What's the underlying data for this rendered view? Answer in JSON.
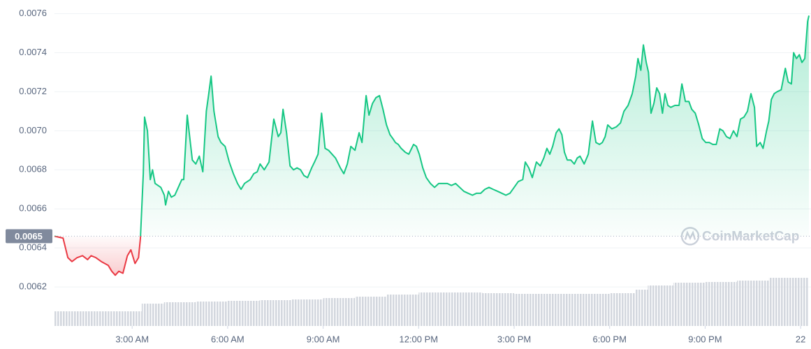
{
  "chart_data": {
    "type": "line",
    "x": [
      0.56,
      0.83,
      0.98,
      1.11,
      1.27,
      1.44,
      1.6,
      1.71,
      1.86,
      2.03,
      2.14,
      2.25,
      2.36,
      2.47,
      2.58,
      2.71,
      2.85,
      2.96,
      3.09,
      3.2,
      3.26,
      3.35,
      3.39,
      3.48,
      3.57,
      3.64,
      3.72,
      3.9,
      4.01,
      4.05,
      4.14,
      4.23,
      4.34,
      4.45,
      4.56,
      4.62,
      4.73,
      4.89,
      5.0,
      5.11,
      5.22,
      5.33,
      5.39,
      5.48,
      5.57,
      5.7,
      5.79,
      5.92,
      6.05,
      6.18,
      6.31,
      6.42,
      6.53,
      6.71,
      6.82,
      6.93,
      7.02,
      7.15,
      7.3,
      7.45,
      7.59,
      7.67,
      7.74,
      7.85,
      7.96,
      8.07,
      8.18,
      8.29,
      8.4,
      8.51,
      8.64,
      8.73,
      8.84,
      8.95,
      9.06,
      9.17,
      9.28,
      9.39,
      9.54,
      9.65,
      9.76,
      9.87,
      10.0,
      10.13,
      10.22,
      10.35,
      10.44,
      10.55,
      10.66,
      10.77,
      10.88,
      10.99,
      11.1,
      11.19,
      11.27,
      11.36,
      11.45,
      11.58,
      11.69,
      11.84,
      11.93,
      12.02,
      12.13,
      12.24,
      12.37,
      12.5,
      12.63,
      12.76,
      12.9,
      13.03,
      13.16,
      13.29,
      13.42,
      13.55,
      13.69,
      13.82,
      13.95,
      14.08,
      14.21,
      14.34,
      14.48,
      14.61,
      14.74,
      14.87,
      15.0,
      15.13,
      15.27,
      15.35,
      15.46,
      15.57,
      15.7,
      15.82,
      15.93,
      16.03,
      16.12,
      16.21,
      16.32,
      16.41,
      16.5,
      16.58,
      16.67,
      16.78,
      16.89,
      16.98,
      17.07,
      17.2,
      17.33,
      17.46,
      17.57,
      17.68,
      17.77,
      17.86,
      17.94,
      18.07,
      18.21,
      18.34,
      18.45,
      18.58,
      18.71,
      18.82,
      18.89,
      18.98,
      19.06,
      19.15,
      19.22,
      19.3,
      19.39,
      19.48,
      19.57,
      19.66,
      19.74,
      19.83,
      19.92,
      20.05,
      20.18,
      20.27,
      20.38,
      20.49,
      20.58,
      20.69,
      20.8,
      20.91,
      21.02,
      21.13,
      21.24,
      21.35,
      21.46,
      21.56,
      21.67,
      21.78,
      21.89,
      22.0,
      22.11,
      22.22,
      22.33,
      22.44,
      22.55,
      22.62,
      22.73,
      22.82,
      22.93,
      23.0,
      23.08,
      23.17,
      23.26,
      23.39,
      23.52,
      23.61,
      23.71,
      23.78,
      23.87,
      23.96,
      24.04,
      24.13,
      24.22,
      24.26
    ],
    "values": [
      0.00646,
      0.00645,
      0.00635,
      0.00633,
      0.00635,
      0.00636,
      0.00634,
      0.00636,
      0.00635,
      0.00633,
      0.00632,
      0.00631,
      0.00628,
      0.00626,
      0.00628,
      0.00627,
      0.00636,
      0.00639,
      0.00632,
      0.00635,
      0.00645,
      0.00678,
      0.00707,
      0.007,
      0.00675,
      0.0068,
      0.00673,
      0.00671,
      0.00667,
      0.00662,
      0.00669,
      0.00666,
      0.00667,
      0.00671,
      0.00675,
      0.00675,
      0.00708,
      0.00685,
      0.00683,
      0.00687,
      0.00679,
      0.0071,
      0.00717,
      0.00728,
      0.0071,
      0.00697,
      0.00694,
      0.00692,
      0.00684,
      0.00678,
      0.00673,
      0.0067,
      0.00673,
      0.00675,
      0.00678,
      0.00679,
      0.00683,
      0.0068,
      0.00684,
      0.00706,
      0.00697,
      0.00699,
      0.00711,
      0.00699,
      0.00682,
      0.0068,
      0.00681,
      0.0068,
      0.00677,
      0.00676,
      0.00681,
      0.00684,
      0.00688,
      0.00709,
      0.00691,
      0.0069,
      0.00688,
      0.00686,
      0.00681,
      0.00678,
      0.00683,
      0.00692,
      0.0069,
      0.00699,
      0.00694,
      0.00718,
      0.00708,
      0.00714,
      0.00717,
      0.00718,
      0.00711,
      0.00703,
      0.00698,
      0.00696,
      0.00694,
      0.00693,
      0.00691,
      0.00689,
      0.00688,
      0.00693,
      0.00692,
      0.00688,
      0.00681,
      0.00676,
      0.00673,
      0.00671,
      0.00673,
      0.00673,
      0.00673,
      0.00672,
      0.00673,
      0.00671,
      0.00669,
      0.00668,
      0.00667,
      0.00668,
      0.00668,
      0.0067,
      0.00671,
      0.0067,
      0.00669,
      0.00668,
      0.00667,
      0.00668,
      0.00671,
      0.00674,
      0.00675,
      0.00684,
      0.00681,
      0.00676,
      0.00684,
      0.00682,
      0.00686,
      0.00691,
      0.00688,
      0.00692,
      0.00699,
      0.00701,
      0.00698,
      0.00689,
      0.00685,
      0.00685,
      0.00683,
      0.00686,
      0.00687,
      0.00683,
      0.00688,
      0.00705,
      0.00694,
      0.00693,
      0.00694,
      0.00697,
      0.00703,
      0.00701,
      0.00702,
      0.00704,
      0.0071,
      0.00713,
      0.00719,
      0.00728,
      0.00737,
      0.00731,
      0.00744,
      0.00735,
      0.0073,
      0.00709,
      0.00714,
      0.00722,
      0.00719,
      0.00709,
      0.00719,
      0.00713,
      0.00712,
      0.00713,
      0.00713,
      0.00724,
      0.00715,
      0.00715,
      0.00711,
      0.00709,
      0.00703,
      0.00696,
      0.00694,
      0.00694,
      0.00693,
      0.00693,
      0.00701,
      0.007,
      0.00697,
      0.00696,
      0.007,
      0.00697,
      0.00706,
      0.00707,
      0.0071,
      0.00719,
      0.00712,
      0.00692,
      0.00694,
      0.00691,
      0.007,
      0.00705,
      0.00716,
      0.00719,
      0.0072,
      0.00721,
      0.00732,
      0.00725,
      0.00724,
      0.0074,
      0.00737,
      0.00739,
      0.00735,
      0.00737,
      0.00756,
      0.00759
    ],
    "baseline": {
      "value": 0.00646,
      "label": "0.0065"
    },
    "color_up": "#16c784",
    "color_down": "#ea3943",
    "xlim": [
      0.56,
      24.26
    ],
    "xticks": [
      {
        "value": 3,
        "label": "3:00 AM"
      },
      {
        "value": 6,
        "label": "6:00 AM"
      },
      {
        "value": 9,
        "label": "9:00 AM"
      },
      {
        "value": 12,
        "label": "12:00 PM"
      },
      {
        "value": 15,
        "label": "3:00 PM"
      },
      {
        "value": 18,
        "label": "6:00 PM"
      },
      {
        "value": 21,
        "label": "9:00 PM"
      },
      {
        "value": 24,
        "label": "22"
      }
    ],
    "ylim": [
      0.006,
      0.00767
    ],
    "yticks": [
      0.0062,
      0.0064,
      0.0066,
      0.0068,
      {
        "value": 0.007,
        "label": "0.0070"
      },
      0.0072,
      0.0074,
      0.0076
    ],
    "grid": true,
    "volume": {
      "bins": [
        0.56,
        3.3,
        4,
        5,
        6,
        7,
        8,
        9,
        10,
        11,
        12,
        13,
        14,
        15,
        16,
        17,
        18,
        18.8,
        19.2,
        20,
        21,
        22,
        23,
        24.26
      ],
      "values": [
        21,
        32,
        34,
        35,
        36,
        37,
        38,
        40,
        42,
        45,
        48,
        48,
        47,
        46,
        46,
        46,
        47,
        52,
        58,
        62,
        63,
        65,
        69
      ],
      "ylim": [
        0,
        100
      ],
      "color": "#d3d7de"
    },
    "watermark": "CoinMarketCap"
  }
}
